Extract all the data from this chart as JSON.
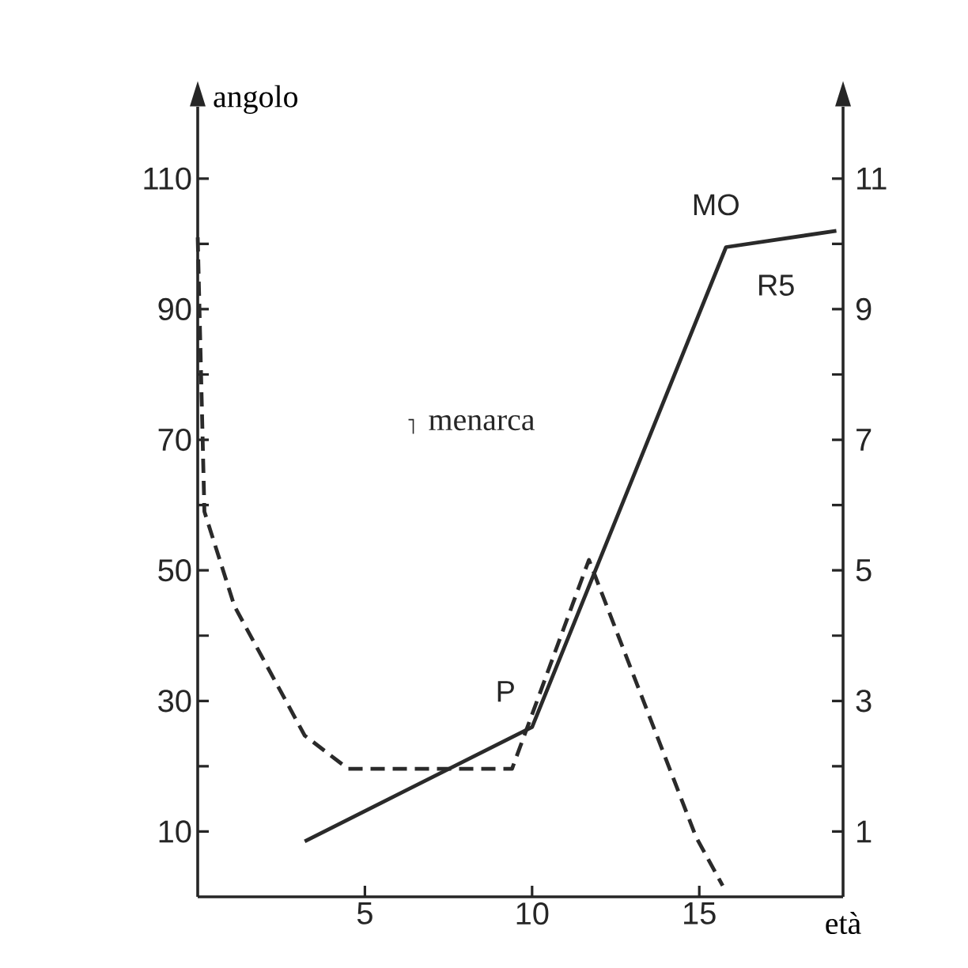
{
  "chart_data": {
    "type": "line",
    "xlabel": "età",
    "ylabel": "angolo",
    "xlim": [
      0,
      19.3
    ],
    "xticks": [
      5,
      10,
      15
    ],
    "ylim": [
      0,
      121
    ],
    "yticks": [
      10,
      {
        "value": 20,
        "label": null
      },
      30,
      {
        "value": 40,
        "label": null
      },
      50,
      {
        "value": 60,
        "label": null
      },
      70,
      {
        "value": 80,
        "label": null
      },
      90,
      {
        "value": 100,
        "label": null
      },
      110
    ],
    "y2lim": [
      0,
      12.1
    ],
    "y2ticks": [
      1,
      {
        "value": 2,
        "label": null
      },
      3,
      {
        "value": 4,
        "label": null
      },
      5,
      {
        "value": 6,
        "label": null
      },
      7,
      {
        "value": 8,
        "label": null
      },
      9,
      {
        "value": 10,
        "label": null
      },
      11
    ],
    "series": [
      {
        "color": "#2a2a2a",
        "line_style": "solid",
        "x": [
          3.2,
          10.0,
          15.8,
          19.1
        ],
        "values": [
          8.5,
          26,
          99.5,
          102
        ]
      },
      {
        "color": "#2a2a2a",
        "line_style": "dashed",
        "x": [
          0,
          0.2,
          1.1,
          3.2,
          4.5,
          9.4,
          11.7,
          14.9,
          15.7
        ],
        "values": [
          101,
          59,
          44.5,
          24.7,
          19.6,
          19.6,
          51.6,
          9.2,
          1.7
        ]
      }
    ],
    "annotations": [
      "P",
      "MO",
      "R5",
      "menarca"
    ]
  }
}
